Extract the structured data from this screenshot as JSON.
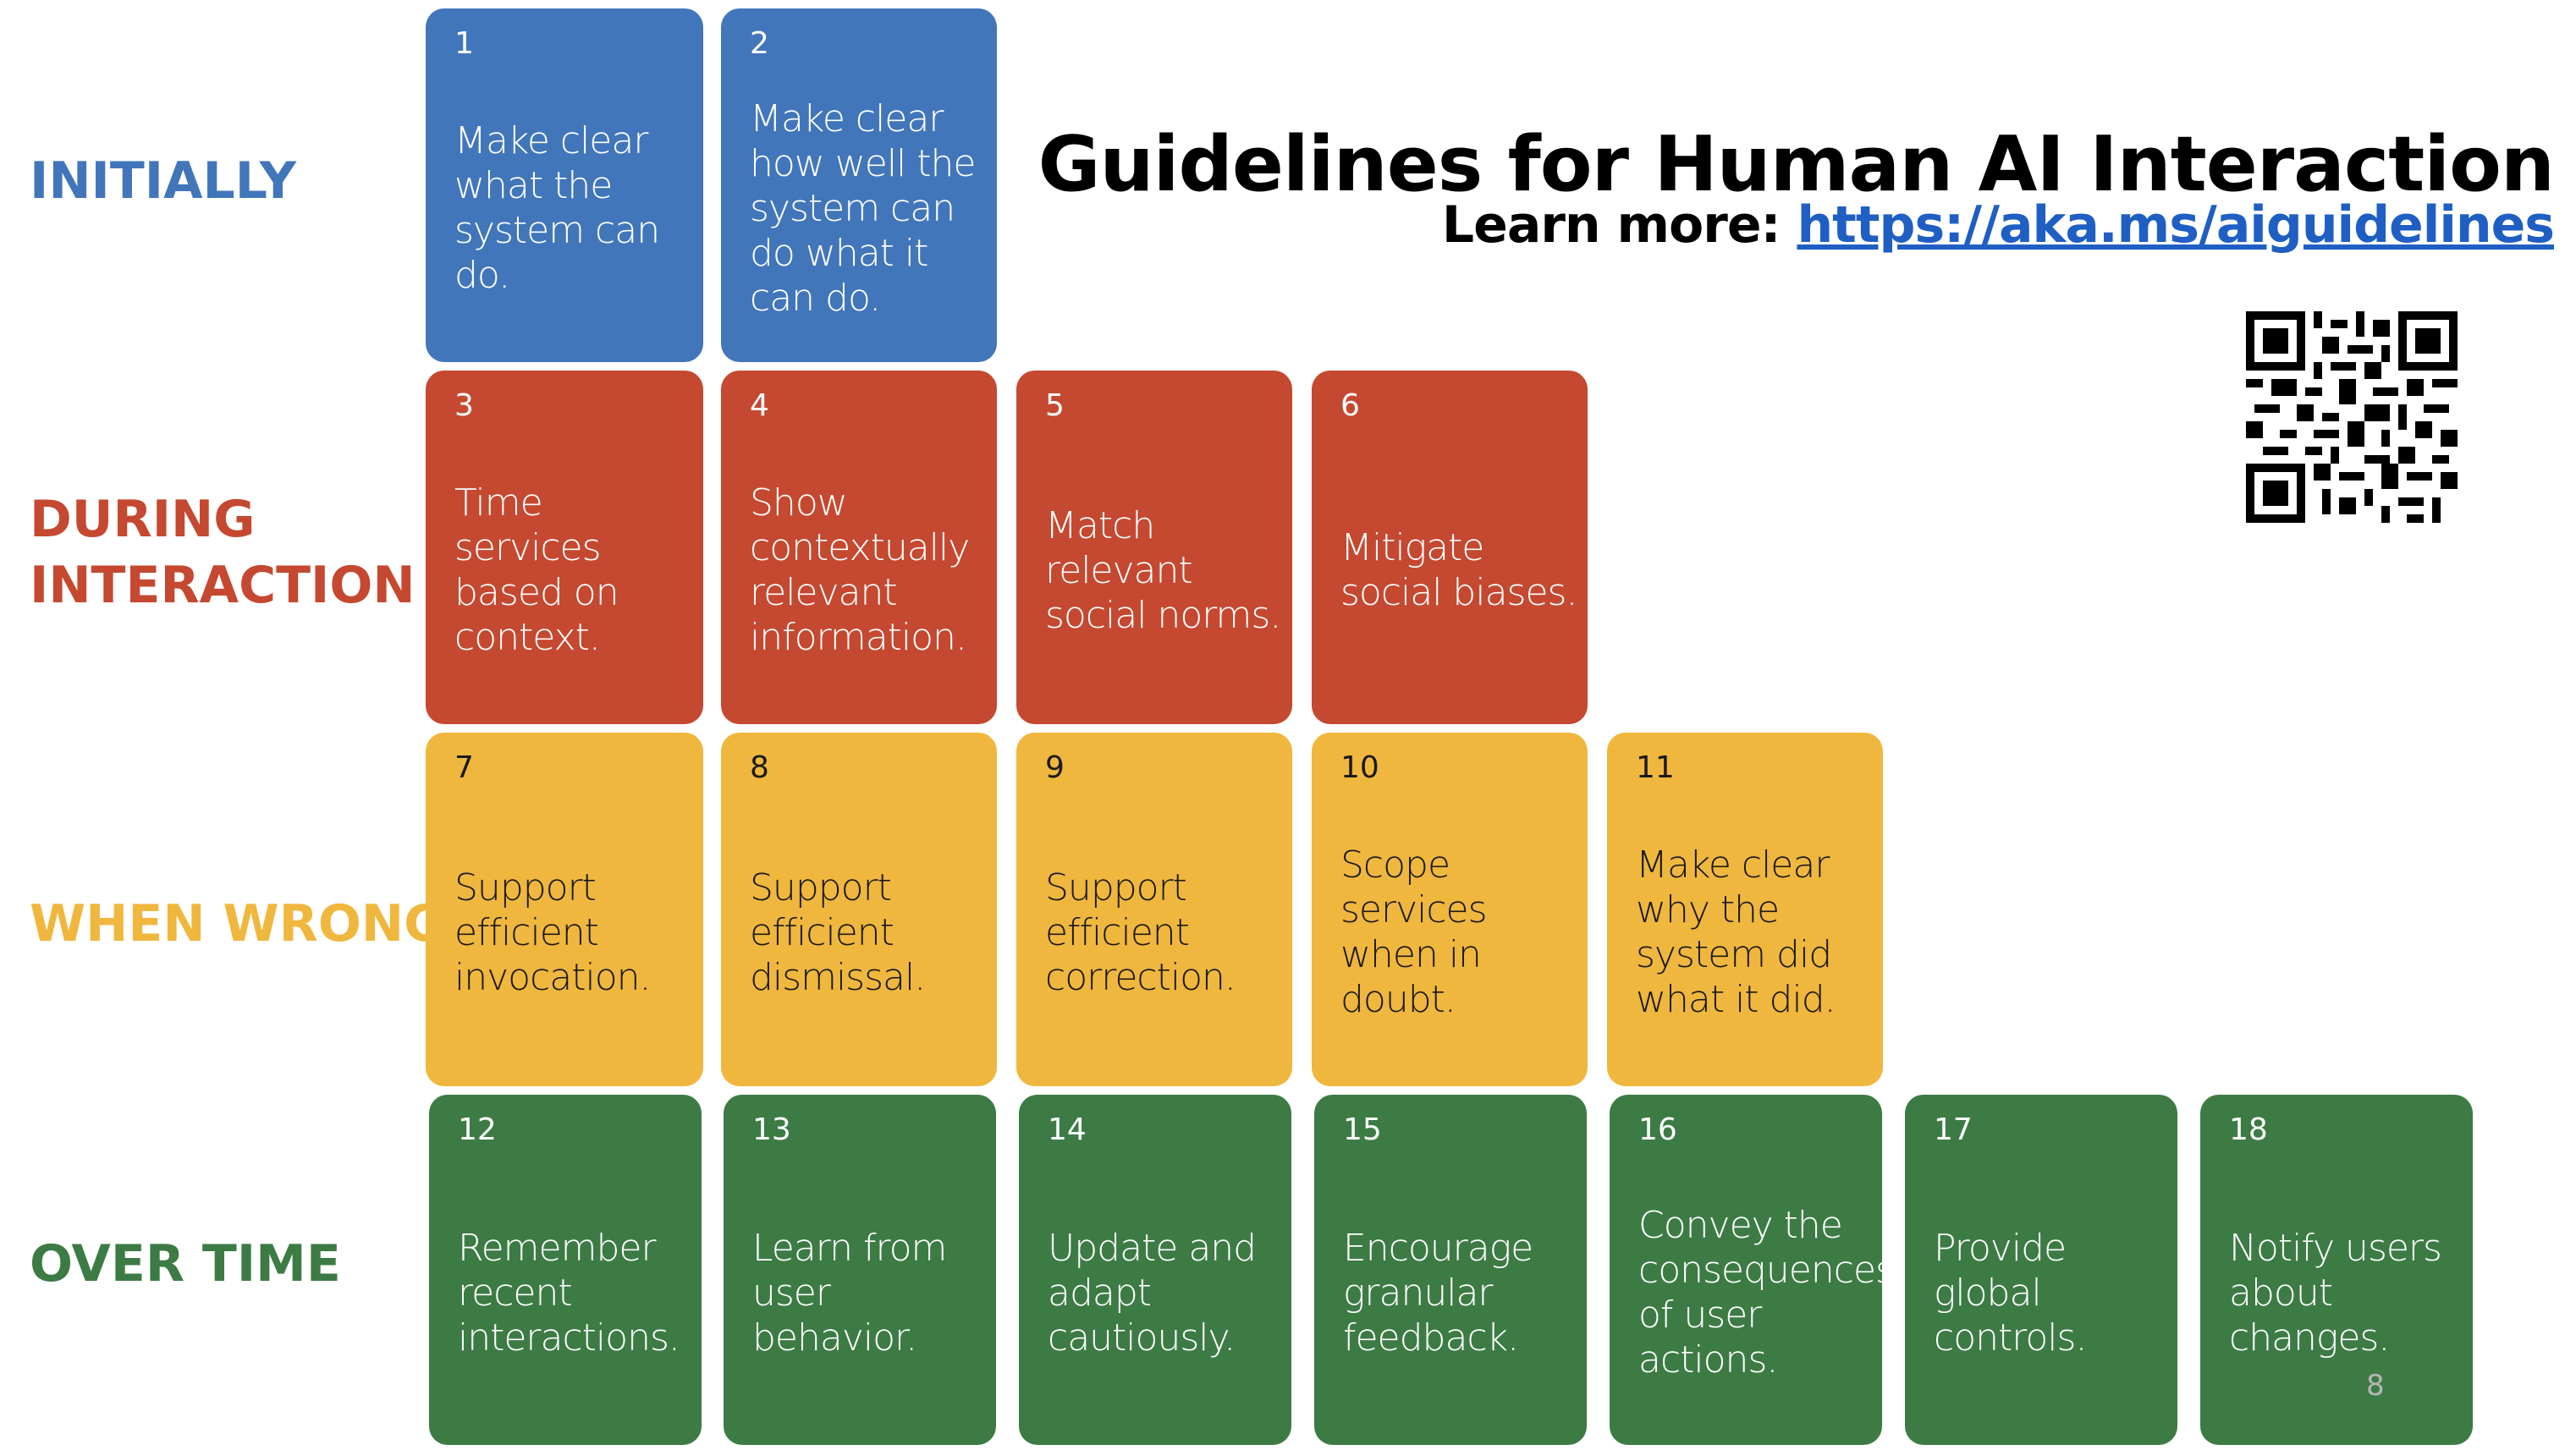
{
  "title": "Guidelines for Human AI Interaction",
  "learn_more": {
    "prefix": "Learn more: ",
    "link": "https://aka.ms/aiguidelines"
  },
  "page_number": "8",
  "colors": {
    "initially": "#4276bb",
    "during": "#c54830",
    "wrong": "#f0b73e",
    "overtime": "#3d7b45"
  },
  "phases": {
    "initially": "INITIALLY",
    "during_1": "DURING",
    "during_2": "INTERACTION",
    "wrong": "WHEN WRONG",
    "overtime": "OVER TIME"
  },
  "cards": [
    {
      "num": "1",
      "text": "Make clear what the system can do."
    },
    {
      "num": "2",
      "text": "Make clear how well the system can do what it can do."
    },
    {
      "num": "3",
      "text": "Time services based on context."
    },
    {
      "num": "4",
      "text": "Show contextually relevant information."
    },
    {
      "num": "5",
      "text": "Match relevant social norms."
    },
    {
      "num": "6",
      "text": "Mitigate social biases."
    },
    {
      "num": "7",
      "text": "Support efficient invocation."
    },
    {
      "num": "8",
      "text": "Support efficient dismissal."
    },
    {
      "num": "9",
      "text": "Support efficient correction."
    },
    {
      "num": "10",
      "text": "Scope services when in doubt."
    },
    {
      "num": "11",
      "text": "Make clear why the system did what it did."
    },
    {
      "num": "12",
      "text": "Remember recent interactions."
    },
    {
      "num": "13",
      "text": "Learn from user behavior."
    },
    {
      "num": "14",
      "text": "Update and adapt cautiously."
    },
    {
      "num": "15",
      "text": "Encourage granular feedback."
    },
    {
      "num": "16",
      "text": "Convey the consequences of user actions."
    },
    {
      "num": "17",
      "text": "Provide global controls."
    },
    {
      "num": "18",
      "text": "Notify users about changes."
    }
  ]
}
